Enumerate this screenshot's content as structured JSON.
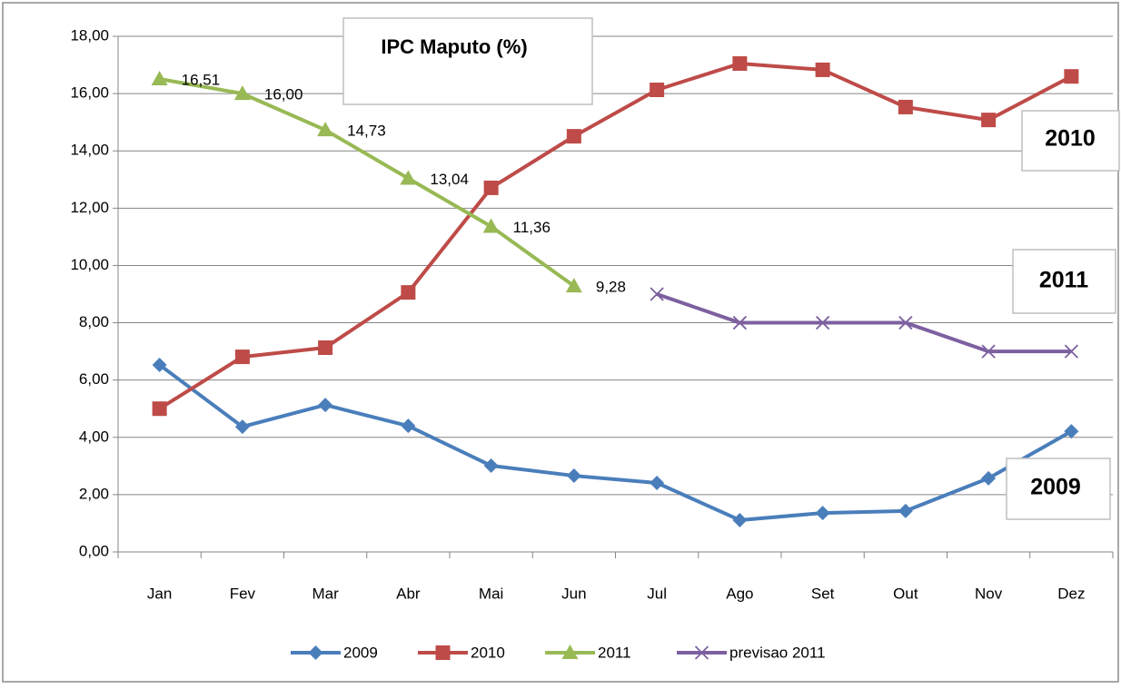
{
  "chart_data": {
    "type": "line",
    "categories": [
      "Jan",
      "Fev",
      "Mar",
      "Abr",
      "Mai",
      "Jun",
      "Jul",
      "Ago",
      "Set",
      "Out",
      "Nov",
      "Dez"
    ],
    "series": [
      {
        "name": "2009",
        "color": "#4a7ebb",
        "marker": "diamond",
        "values": [
          6.53,
          4.37,
          5.13,
          4.4,
          3.01,
          2.66,
          2.41,
          1.11,
          1.36,
          1.43,
          2.57,
          4.21
        ]
      },
      {
        "name": "2010",
        "color": "#be4b48",
        "marker": "square",
        "values": [
          5.0,
          6.81,
          7.13,
          9.06,
          12.71,
          14.51,
          16.13,
          17.05,
          16.83,
          15.53,
          15.08,
          16.6
        ]
      },
      {
        "name": "2011",
        "color": "#98b954",
        "marker": "triangle",
        "values": [
          16.51,
          16.0,
          14.73,
          13.04,
          11.36,
          9.28,
          null,
          null,
          null,
          null,
          null,
          null
        ],
        "value_labels": [
          "16,51",
          "16,00",
          "14,73",
          "13,04",
          "11,36",
          "9,28",
          null,
          null,
          null,
          null,
          null,
          null
        ]
      },
      {
        "name": "previsao 2011",
        "color": "#7d60a0",
        "marker": "x",
        "values": [
          null,
          null,
          null,
          null,
          null,
          null,
          9.0,
          8.0,
          8.0,
          8.0,
          7.0,
          7.0
        ]
      }
    ],
    "ylim": [
      0,
      18
    ],
    "yticks": [
      {
        "value": 0,
        "label": "0,00"
      },
      {
        "value": 2,
        "label": "2,00"
      },
      {
        "value": 4,
        "label": "4,00"
      },
      {
        "value": 6,
        "label": "6,00"
      },
      {
        "value": 8,
        "label": "8,00"
      },
      {
        "value": 10,
        "label": "10,00"
      },
      {
        "value": 12,
        "label": "12,00"
      },
      {
        "value": 14,
        "label": "14,00"
      },
      {
        "value": 16,
        "label": "16,00"
      },
      {
        "value": 18,
        "label": "18,00"
      }
    ],
    "grid": true,
    "legend": "bottom",
    "annotations": [
      "IPC Maputo (%)",
      "2010",
      "2011",
      "2009"
    ]
  }
}
